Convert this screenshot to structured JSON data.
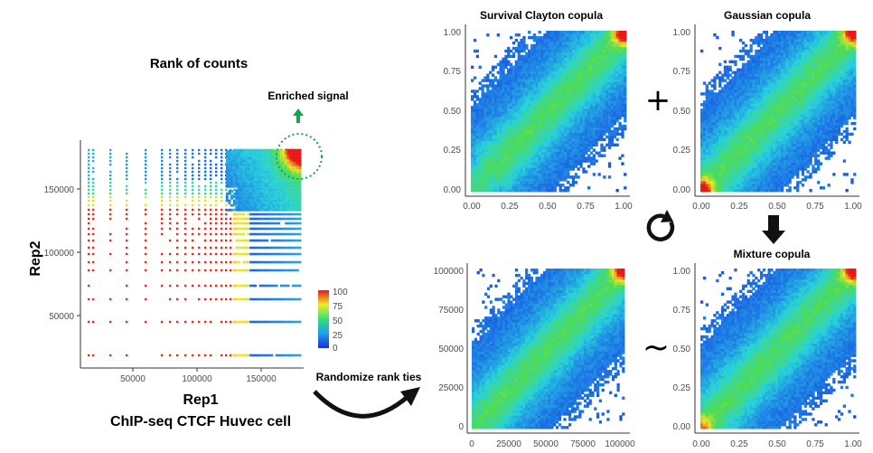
{
  "main_plot": {
    "title": "Rank of counts",
    "annotation": "Enriched signal",
    "xlabel": "Rep1",
    "ylabel": "Rep2",
    "caption": "ChIP-seq CTCF Huvec cell",
    "x_ticks": [
      "50000",
      "100000",
      "150000"
    ],
    "y_ticks": [
      "50000",
      "100000",
      "150000"
    ],
    "legend_ticks": [
      "100",
      "75",
      "50",
      "25",
      "0"
    ]
  },
  "panels": {
    "survival_clayton": {
      "title": "Survival Clayton copula",
      "x_ticks": [
        "0.00",
        "0.25",
        "0.50",
        "0.75",
        "1.00"
      ],
      "y_ticks": [
        "1.00",
        "0.75",
        "0.50",
        "0.25",
        "0.00"
      ]
    },
    "gaussian": {
      "title": "Gaussian copula",
      "x_ticks": [
        "0.00",
        "0.25",
        "0.50",
        "0.75",
        "1.00"
      ],
      "y_ticks": [
        "1.00",
        "0.75",
        "0.50",
        "0.25",
        "0.00"
      ]
    },
    "mixture": {
      "title": "Mixture copula",
      "x_ticks": [
        "0.00",
        "0.25",
        "0.50",
        "0.75",
        "1.00"
      ],
      "y_ticks": [
        "1.00",
        "0.75",
        "0.50",
        "0.25",
        "0.00"
      ]
    },
    "randomized": {
      "title": "",
      "x_ticks": [
        "0",
        "25000",
        "50000",
        "75000",
        "100000"
      ],
      "y_ticks": [
        "100000",
        "75000",
        "50000",
        "25000",
        "0"
      ]
    }
  },
  "arrows": {
    "randomize_label": "Randomize rank ties",
    "plus_symbol": "+",
    "approx_symbol": "~"
  },
  "colors": {
    "low": "#1e3cd2",
    "mid": "#32d9d2",
    "high": "#e81616",
    "enriched_arrow": "#14a550",
    "circle": "#14a550"
  },
  "chart_data": [
    {
      "type": "heatmap",
      "title": "Rank of counts",
      "xlabel": "Rep1",
      "ylabel": "Rep2",
      "xlim": [
        15000,
        180000
      ],
      "ylim": [
        15000,
        180000
      ],
      "legend_range": [
        0,
        100
      ],
      "description": "Ranked Rep1 vs Rep2 counts with tied ranks forming vertical and horizontal stripes; highest density (red) near the top-right corner"
    },
    {
      "type": "heatmap",
      "title": "Survival Clayton copula",
      "xlim": [
        0,
        1
      ],
      "ylim": [
        0,
        1
      ],
      "density_peak": "upper-right"
    },
    {
      "type": "heatmap",
      "title": "Gaussian copula",
      "xlim": [
        0,
        1
      ],
      "ylim": [
        0,
        1
      ],
      "density_peak": "both corners"
    },
    {
      "type": "heatmap",
      "title": "Mixture copula",
      "xlim": [
        0,
        1
      ],
      "ylim": [
        0,
        1
      ],
      "density_peak": "upper-right, secondary lower-left"
    },
    {
      "type": "heatmap",
      "title": "",
      "xlim": [
        0,
        100000
      ],
      "ylim": [
        0,
        100000
      ],
      "density_peak": "upper-right"
    }
  ]
}
